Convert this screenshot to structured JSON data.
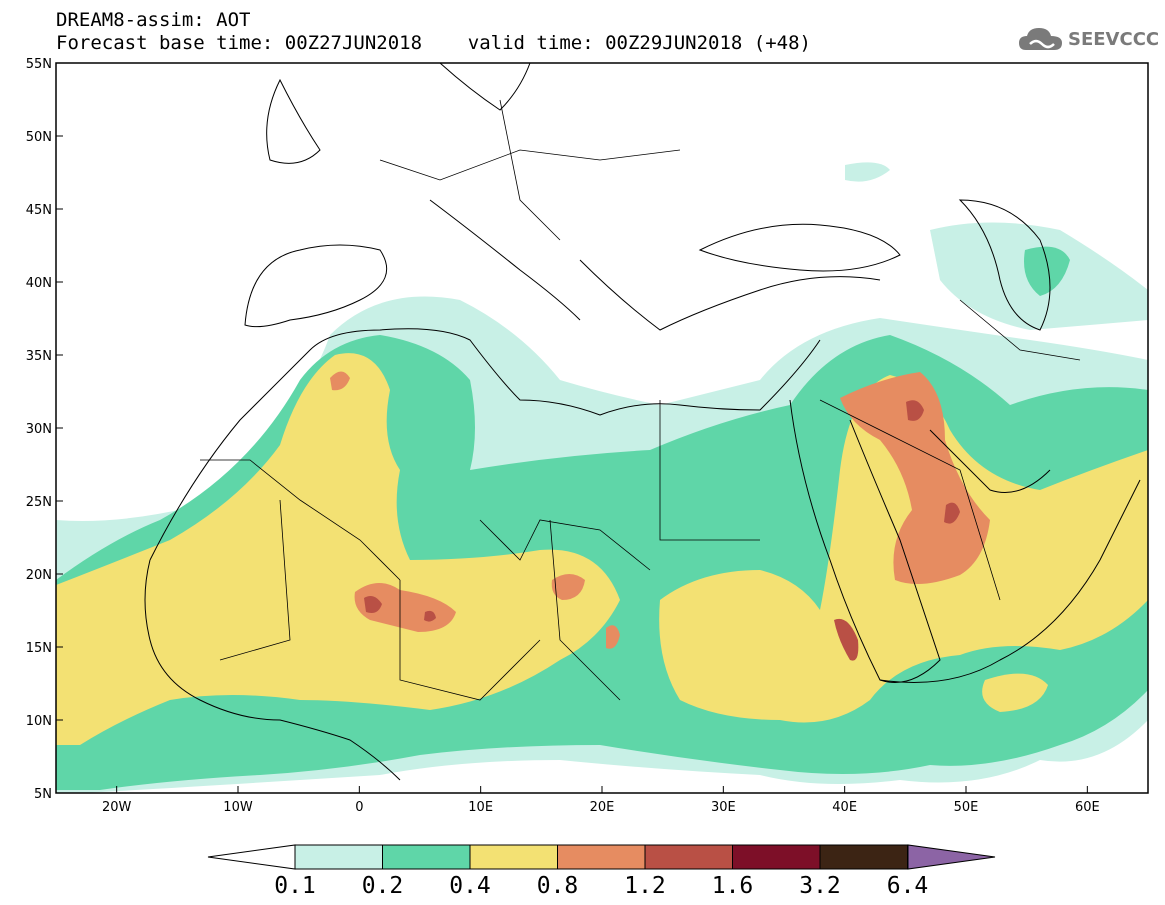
{
  "header": {
    "line1": "DREAM8-assim: AOT",
    "line2": "Forecast base time: 00Z27JUN2018    valid time: 00Z29JUN2018 (+48)"
  },
  "logo": {
    "text": "SEEVCCC",
    "icon": "cloud-icon"
  },
  "map": {
    "lon_range": [
      -25,
      65
    ],
    "lat_range": [
      5,
      55
    ],
    "lon_ticks": [
      "20W",
      "10W",
      "0",
      "10E",
      "20E",
      "30E",
      "40E",
      "50E",
      "60E"
    ],
    "lat_ticks": [
      "55N",
      "50N",
      "45N",
      "40N",
      "35N",
      "30N",
      "25N",
      "20N",
      "15N",
      "10N",
      "5N"
    ]
  },
  "colorbar": {
    "labels": [
      "0.1",
      "0.2",
      "0.4",
      "0.8",
      "1.2",
      "1.6",
      "3.2",
      "6.4"
    ],
    "colors": [
      "#c8f0e6",
      "#5fd6a8",
      "#f3e173",
      "#e68c61",
      "#b95045",
      "#7d0f28",
      "#3c2414",
      "#8c64a5"
    ]
  },
  "colors": {
    "c1": "#c8f0e6",
    "c2": "#5fd6a8",
    "c3": "#f3e173",
    "c4": "#e68c61",
    "c5": "#b95045"
  }
}
